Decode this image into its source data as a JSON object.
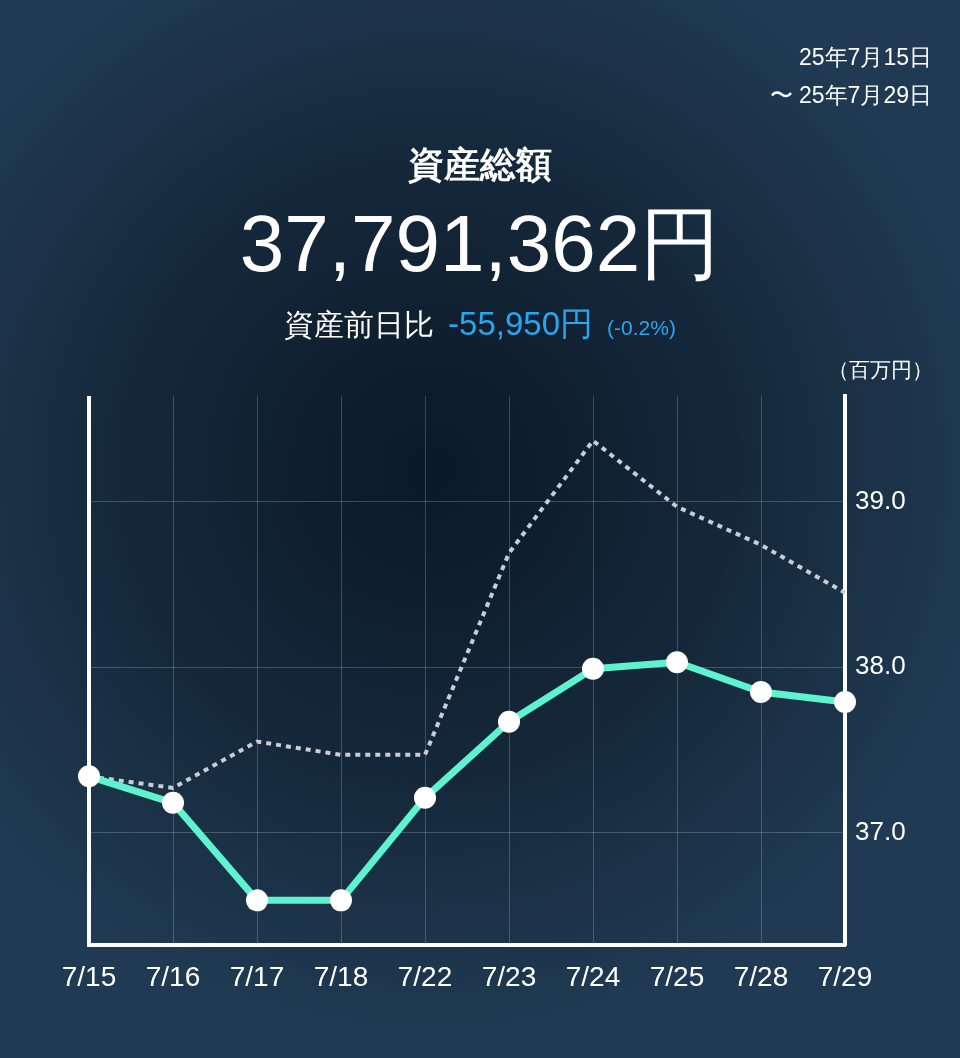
{
  "chart_data": {
    "type": "line",
    "title": "資産総額",
    "subtitle": "37,791,362円",
    "ylabel": "（百万円）",
    "annotations": [
      "25年7月15日",
      "〜 25年7月29日",
      "資産前日比",
      "-55,950円",
      "(-0.2%)"
    ],
    "categories": [
      "7/15",
      "7/16",
      "7/17",
      "7/18",
      "7/22",
      "7/23",
      "7/24",
      "7/25",
      "7/28",
      "7/29"
    ],
    "series": [
      {
        "color": "#5ef2cf",
        "marker": "circle",
        "line_style": "solid",
        "values": [
          37.34,
          37.18,
          36.59,
          36.59,
          37.21,
          37.67,
          37.99,
          38.03,
          37.85,
          37.79
        ]
      },
      {
        "color": "#c9ced6",
        "marker": "none",
        "line_style": "dotted",
        "values": [
          37.34,
          37.27,
          37.55,
          37.47,
          37.47,
          38.69,
          39.37,
          38.97,
          38.74,
          38.45
        ]
      }
    ],
    "ylim": [
      36.32,
      39.64
    ],
    "yticks": [
      {
        "value": 37,
        "label": "37.0"
      },
      {
        "value": 38,
        "label": "38.0"
      },
      {
        "value": 39,
        "label": "39.0"
      }
    ],
    "grid": true
  }
}
